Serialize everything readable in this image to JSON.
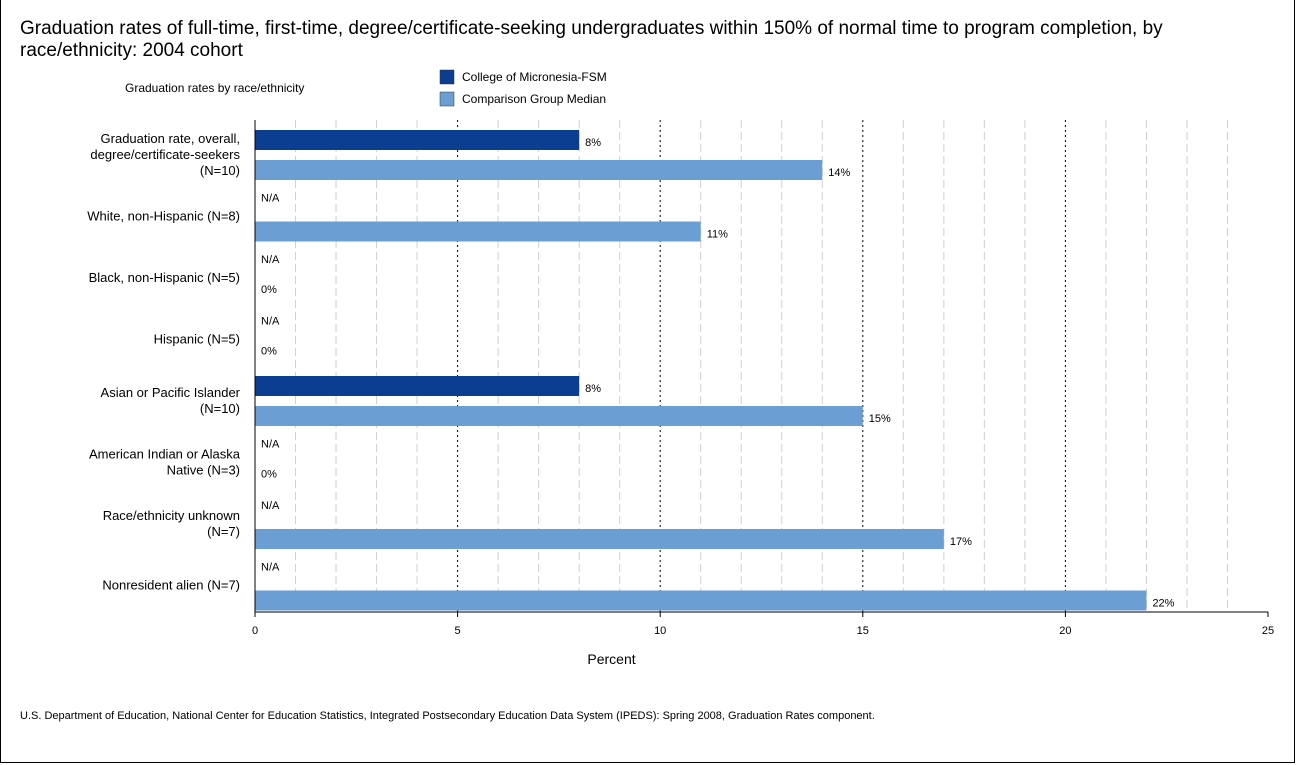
{
  "chart_data": {
    "type": "bar",
    "orientation": "horizontal",
    "title": "Graduation rates of full-time, first-time, degree/certificate-seeking undergraduates within 150% of normal time to program completion, by race/ethnicity: 2004 cohort",
    "legend_title": "Graduation rates by race/ethnicity",
    "legend_position": "top",
    "xlabel": "Percent",
    "ylabel": "",
    "xlim": [
      0,
      25
    ],
    "x_ticks": [
      "0",
      "5",
      "10",
      "15",
      "20",
      "25"
    ],
    "grid": true,
    "categories": [
      [
        "Graduation rate, overall,",
        "degree/certificate-seekers",
        "(N=10)"
      ],
      [
        "White, non-Hispanic  (N=8)"
      ],
      [
        "Black, non-Hispanic  (N=5)"
      ],
      [
        "Hispanic  (N=5)"
      ],
      [
        "Asian or Pacific Islander",
        "(N=10)"
      ],
      [
        "American Indian or Alaska",
        "Native  (N=3)"
      ],
      [
        "Race/ethnicity unknown",
        "(N=7)"
      ],
      [
        "Nonresident alien  (N=7)"
      ]
    ],
    "series": [
      {
        "name": "College of Micronesia-FSM",
        "color": "#0b3d91",
        "values": [
          8,
          null,
          null,
          null,
          8,
          null,
          null,
          null
        ],
        "labels": [
          "8%",
          "N/A",
          "N/A",
          "N/A",
          "8%",
          "N/A",
          "N/A",
          "N/A"
        ]
      },
      {
        "name": "Comparison Group Median",
        "color": "#6b9fd4",
        "values": [
          14,
          11,
          0,
          0,
          15,
          0,
          17,
          22
        ],
        "labels": [
          "14%",
          "11%",
          "0%",
          "0%",
          "15%",
          "0%",
          "17%",
          "22%"
        ]
      }
    ]
  },
  "source_note": "U.S. Department of Education, National Center for Education Statistics, Integrated Postsecondary Education Data System (IPEDS): Spring 2008, Graduation Rates component."
}
